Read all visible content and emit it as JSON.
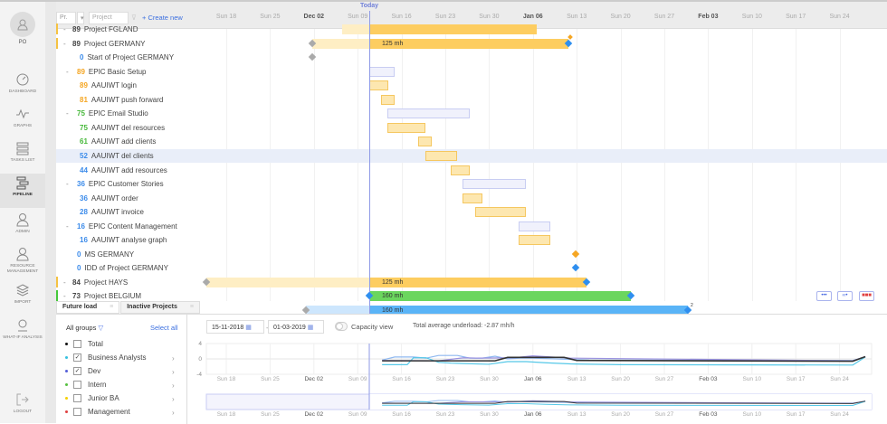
{
  "sidebar": {
    "user": "PO",
    "items": [
      {
        "label": "Dashboard",
        "icon": "gauge-icon"
      },
      {
        "label": "Graphs",
        "icon": "pulse-icon"
      },
      {
        "label": "Tasks list",
        "icon": "list-icon"
      },
      {
        "label": "Pipeline",
        "icon": "pipeline-icon",
        "active": true
      },
      {
        "label": "Admin",
        "icon": "user-icon"
      },
      {
        "label": "Resource management",
        "icon": "users-icon"
      },
      {
        "label": "Import",
        "icon": "layers-icon"
      },
      {
        "label": "What-if analysis",
        "icon": "analysis-icon"
      },
      {
        "label": "Logout",
        "icon": "logout-icon"
      }
    ]
  },
  "toolbar": {
    "filter_value": "Pr.",
    "project_placeholder": "Project",
    "create_label": "+ Create new",
    "today_label": "Today"
  },
  "timeline": {
    "ticks": [
      {
        "label": "Sun 18"
      },
      {
        "label": "Sun 25"
      },
      {
        "label": "Dec 02",
        "bold": true
      },
      {
        "label": "Sun 09"
      },
      {
        "label": "Sun 16"
      },
      {
        "label": "Sun 23"
      },
      {
        "label": "Sun 30"
      },
      {
        "label": "Jan 06",
        "bold": true
      },
      {
        "label": "Sun 13"
      },
      {
        "label": "Sun 20"
      },
      {
        "label": "Sun 27"
      },
      {
        "label": "Feb 03",
        "bold": true
      },
      {
        "label": "Sun 10"
      },
      {
        "label": "Sun 17"
      },
      {
        "label": "Sun 24"
      }
    ]
  },
  "tree": [
    {
      "num": "89",
      "label": "Project FGLAND",
      "color": "dark",
      "level": 0,
      "toggle": true,
      "edge": "#f5c242"
    },
    {
      "num": "89",
      "label": "Project GERMANY",
      "color": "dark",
      "level": 0,
      "toggle": true,
      "edge": "#f5c242",
      "bar_label": "125 mh"
    },
    {
      "num": "0",
      "label": "Start of Project GERMANY",
      "color": "blue",
      "level": 2
    },
    {
      "num": "89",
      "label": "EPIC Basic Setup",
      "color": "orange",
      "level": 1,
      "toggle": true
    },
    {
      "num": "89",
      "label": "AAUIWT login",
      "color": "orange",
      "level": 2
    },
    {
      "num": "81",
      "label": "AAUIWT push forward",
      "color": "orange",
      "level": 2
    },
    {
      "num": "75",
      "label": "EPIC Email Studio",
      "color": "green",
      "level": 1,
      "toggle": true
    },
    {
      "num": "75",
      "label": "AAUIWT del resources",
      "color": "green",
      "level": 2
    },
    {
      "num": "61",
      "label": "AAUIWT add clients",
      "color": "green",
      "level": 2
    },
    {
      "num": "52",
      "label": "AAUIWT del clients",
      "color": "blue",
      "level": 2,
      "selected": true
    },
    {
      "num": "44",
      "label": "AAUIWT add resources",
      "color": "blue",
      "level": 2
    },
    {
      "num": "36",
      "label": "EPIC Customer Stories",
      "color": "blue",
      "level": 1,
      "toggle": true
    },
    {
      "num": "36",
      "label": "AAUIWT order",
      "color": "blue",
      "level": 2
    },
    {
      "num": "28",
      "label": "AAUIWT invoice",
      "color": "blue",
      "level": 2
    },
    {
      "num": "16",
      "label": "EPIC Content Management",
      "color": "blue",
      "level": 1,
      "toggle": true
    },
    {
      "num": "16",
      "label": "AAUIWT analyse graph",
      "color": "blue",
      "level": 2
    },
    {
      "num": "0",
      "label": "MS GERMANY",
      "color": "blue",
      "level": 1
    },
    {
      "num": "0",
      "label": "IDD of Project GERMANY",
      "color": "blue",
      "level": 1
    },
    {
      "num": "84",
      "label": "Project HAYS",
      "color": "dark",
      "level": 0,
      "toggle": true,
      "edge": "#f5c242",
      "bar_label": "125 mh"
    },
    {
      "num": "73",
      "label": "Project BELGIUM",
      "color": "dark",
      "level": 0,
      "toggle": true,
      "edge": "#45c83a",
      "bar_label": "160 mh"
    },
    {
      "bar_label": "160 mh"
    }
  ],
  "right_buttons": [
    "•••",
    "‹‹•",
    "■■■"
  ],
  "blue_bar_badge": "2",
  "panel": {
    "tabs": [
      {
        "label": "Future load"
      },
      {
        "label": "Inactive Projects"
      }
    ],
    "groups_label": "All groups",
    "select_all": "Select all",
    "groups": [
      {
        "label": "Total",
        "color": "#111111",
        "checked": false,
        "chevron": false
      },
      {
        "label": "Business Analysts",
        "color": "#35c0e0",
        "checked": true,
        "chevron": true
      },
      {
        "label": "Dev",
        "color": "#5560d8",
        "checked": true,
        "chevron": true
      },
      {
        "label": "Intern",
        "color": "#55c040",
        "checked": false,
        "chevron": true
      },
      {
        "label": "Junior BA",
        "color": "#f5d000",
        "checked": false,
        "chevron": true
      },
      {
        "label": "Management",
        "color": "#e04040",
        "checked": false,
        "chevron": true
      }
    ],
    "date_from": "15-11-2018",
    "date_to": "01-03-2019",
    "capacity_label": "Capacity view",
    "capacity_on": false,
    "underload": "Total average underload: -2.87 mh/h"
  },
  "chart_data": {
    "type": "line",
    "ylim": [
      -4,
      4
    ],
    "yticks": [
      "4",
      "0",
      "-4"
    ],
    "xrange": [
      "2018-11-15",
      "2019-03-01"
    ],
    "xticks": [
      "Sun 18",
      "Sun 25",
      "Dec 02",
      "Sun 09",
      "Sun 16",
      "Sun 23",
      "Sun 30",
      "Jan 06",
      "Sun 13",
      "Sun 20",
      "Sun 27",
      "Feb 03",
      "Sun 10",
      "Sun 17",
      "Sun 24"
    ],
    "series": [
      {
        "color": "#8fb8f0",
        "points": [
          [
            "2018-12-13",
            -0.3
          ],
          [
            "2018-12-15",
            0.5
          ],
          [
            "2018-12-18",
            0.5
          ],
          [
            "2018-12-20",
            0.2
          ],
          [
            "2018-12-22",
            0.9
          ],
          [
            "2018-12-25",
            0.9
          ],
          [
            "2018-12-27",
            0.2
          ],
          [
            "2018-12-29",
            0.2
          ],
          [
            "2018-12-31",
            0.7
          ],
          [
            "2019-01-02",
            0.0
          ],
          [
            "2019-01-04",
            0.2
          ],
          [
            "2019-01-06",
            0.2
          ],
          [
            "2019-01-15",
            -0.3
          ],
          [
            "2019-02-26",
            -0.4
          ],
          [
            "2019-02-28",
            0.5
          ]
        ]
      },
      {
        "color": "#9a92e0",
        "points": [
          [
            "2018-12-13",
            -0.4
          ],
          [
            "2018-12-22",
            -0.5
          ],
          [
            "2018-12-26",
            0.3
          ],
          [
            "2018-12-28",
            0.2
          ],
          [
            "2019-01-03",
            0.3
          ],
          [
            "2019-01-06",
            0.8
          ],
          [
            "2019-01-12",
            0.2
          ],
          [
            "2019-02-26",
            -0.5
          ],
          [
            "2019-02-28",
            0.6
          ]
        ]
      },
      {
        "color": "#55c8e8",
        "points": [
          [
            "2018-12-13",
            -1.5
          ],
          [
            "2018-12-17",
            -1.5
          ],
          [
            "2018-12-18",
            0.3
          ],
          [
            "2018-12-20",
            0.3
          ],
          [
            "2018-12-22",
            -0.9
          ],
          [
            "2018-12-24",
            -1.1
          ],
          [
            "2018-12-30",
            -1.4
          ],
          [
            "2019-01-02",
            -0.7
          ],
          [
            "2019-01-05",
            -0.7
          ],
          [
            "2019-01-08",
            -1.0
          ],
          [
            "2019-01-12",
            -1.3
          ],
          [
            "2019-01-20",
            -1.5
          ],
          [
            "2019-02-26",
            -1.6
          ],
          [
            "2019-02-28",
            0.5
          ]
        ]
      },
      {
        "color": "#333333",
        "points": [
          [
            "2018-12-13",
            -0.5
          ],
          [
            "2018-12-31",
            -0.5
          ],
          [
            "2019-01-02",
            0.4
          ],
          [
            "2019-01-08",
            0.4
          ],
          [
            "2019-01-11",
            0.4
          ],
          [
            "2019-01-13",
            -0.4
          ],
          [
            "2019-02-26",
            -0.6
          ],
          [
            "2019-02-28",
            0.6
          ]
        ]
      }
    ]
  }
}
